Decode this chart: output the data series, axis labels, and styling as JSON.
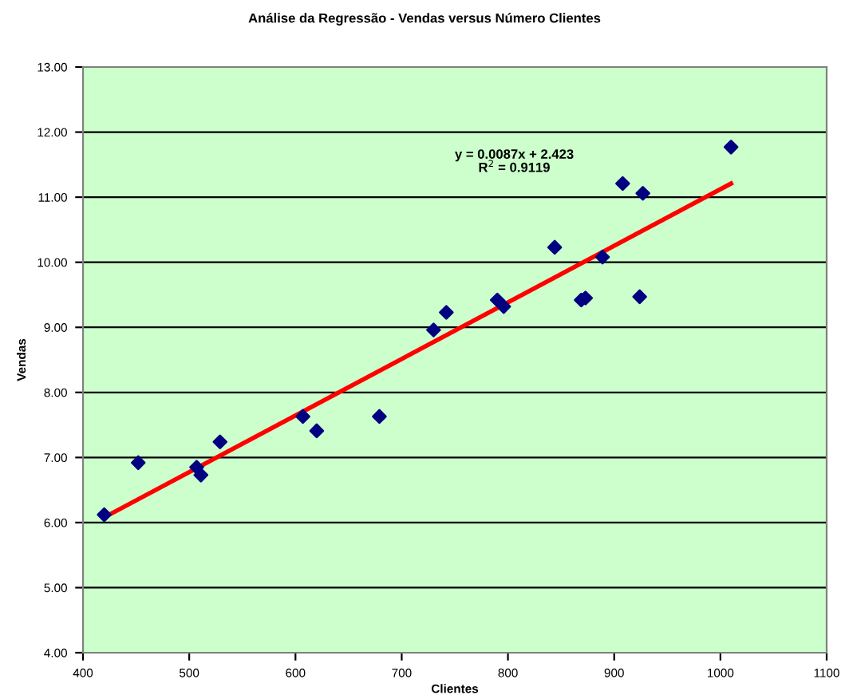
{
  "chart_data": {
    "type": "scatter",
    "title": "Análise da Regressão - Vendas versus Número Clientes",
    "xlabel": "Clientes",
    "ylabel": "Vendas",
    "x": [
      420,
      452,
      507,
      511,
      529,
      607,
      620,
      679,
      730,
      742,
      790,
      796,
      844,
      869,
      873,
      889,
      908,
      927,
      924,
      1010
    ],
    "series": [
      {
        "color": "#000080",
        "marker": "diamond",
        "values": [
          6.12,
          6.92,
          6.85,
          6.73,
          7.24,
          7.63,
          7.41,
          7.63,
          8.96,
          9.23,
          9.42,
          9.32,
          10.23,
          9.42,
          9.45,
          10.08,
          11.21,
          11.06,
          9.47,
          11.77
        ]
      },
      {
        "type": "line",
        "color": "#ff0000",
        "x": [
          420,
          1010
        ],
        "values": [
          6.08,
          11.21
        ],
        "marker": "none",
        "line_style": "solid"
      }
    ],
    "annotations": [
      "y = 0.0087x + 2.423\nR$^{2}$ = 0.9119"
    ],
    "xlim": [
      400,
      1100
    ],
    "xticks": [
      400,
      500,
      600,
      700,
      800,
      900,
      1000,
      1100
    ],
    "ylim": [
      4,
      13
    ],
    "yticks": [
      {
        "value": 4,
        "label": "4.00"
      },
      {
        "value": 5,
        "label": "5.00"
      },
      {
        "value": 6,
        "label": "6.00"
      },
      {
        "value": 7,
        "label": "7.00"
      },
      {
        "value": 8,
        "label": "8.00"
      },
      {
        "value": 9,
        "label": "9.00"
      },
      {
        "value": 10,
        "label": "10.00"
      },
      {
        "value": 11,
        "label": "11.00"
      },
      {
        "value": 12,
        "label": "12.00"
      },
      {
        "value": 13,
        "label": "13.00"
      }
    ],
    "grid": "y",
    "legend": false
  }
}
